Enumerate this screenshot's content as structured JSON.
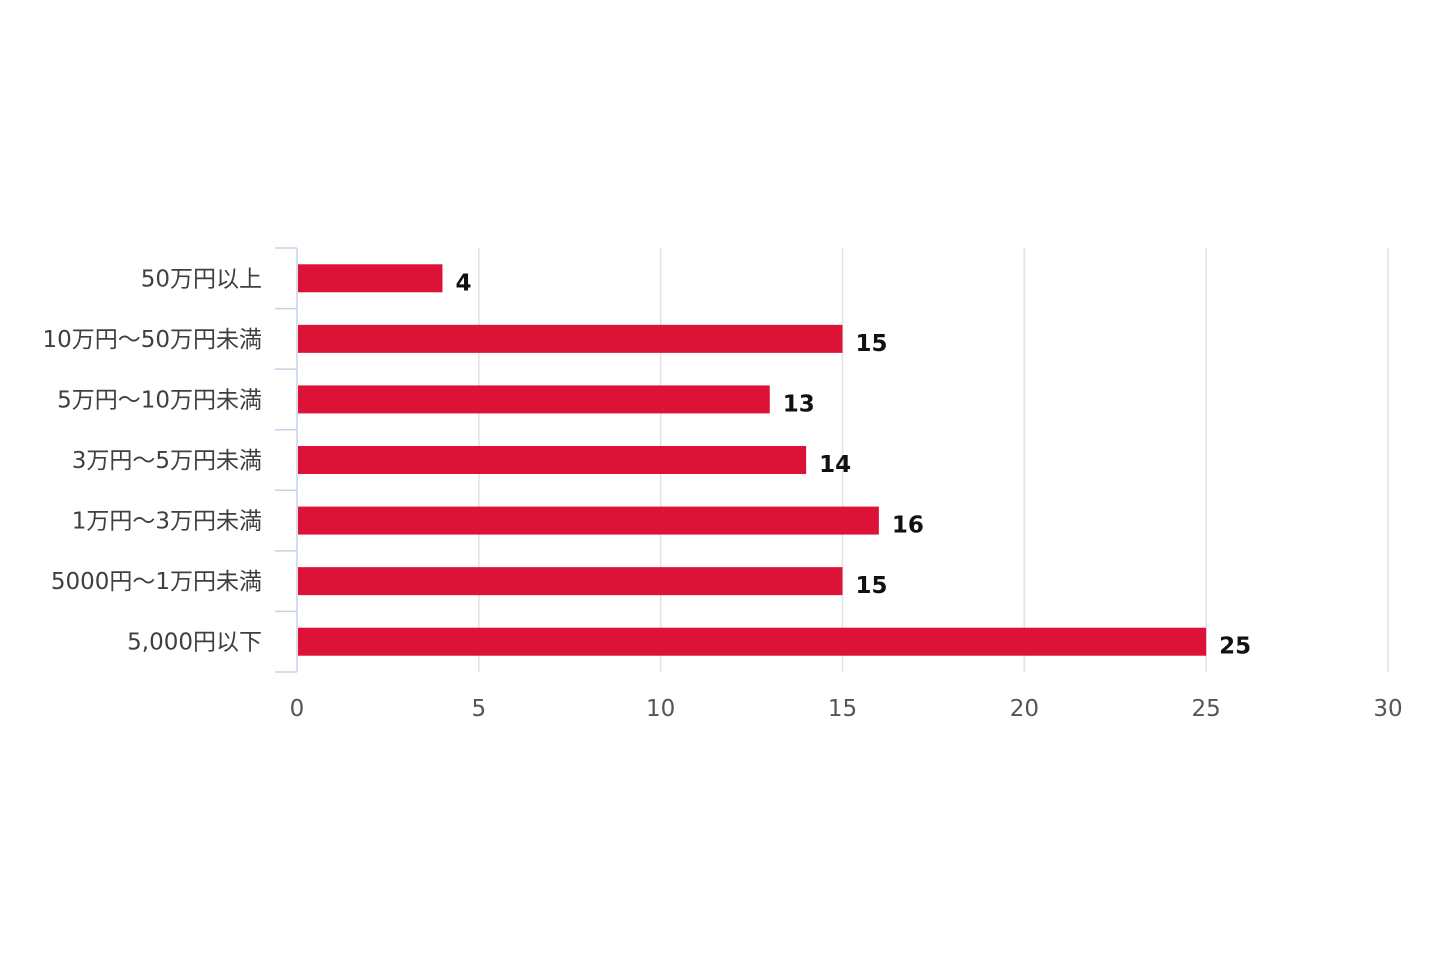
{
  "chart_data": {
    "type": "bar",
    "orientation": "horizontal",
    "categories": [
      "50万円以上",
      "10万円～50万円未満",
      "5万円～10万円未満",
      "3万円～5万円未満",
      "1万円～3万円未満",
      "5000円～1万円未満",
      "5,000円以下"
    ],
    "values": [
      4,
      15,
      13,
      14,
      16,
      15,
      25
    ],
    "xlim": [
      0,
      30
    ],
    "xticks": [
      0,
      5,
      10,
      15,
      20,
      25,
      30
    ],
    "title": "",
    "xlabel": "",
    "ylabel": "",
    "grid": true,
    "legend": "none",
    "data_labels": true,
    "colors": {
      "bar": "#dc1237",
      "grid": "#e2e2e2",
      "axis": "#c5d3e6"
    }
  }
}
